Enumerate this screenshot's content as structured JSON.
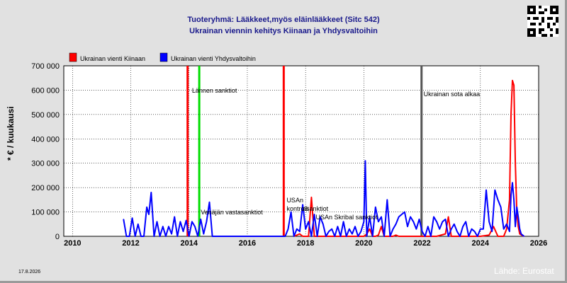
{
  "header": {
    "title_line1": "Tuoteryhmä: Lääkkeet,myös eläinlääkkeet (Sitc 542)",
    "title_line2": "Ukrainan viennin kehitys  Kiinaan ja Yhdysvaltoihin"
  },
  "footer": {
    "date": "17.8.2026",
    "source": "Lähde: Eurostat"
  },
  "colors": {
    "background": "#e1e1e1",
    "plot": "#ffffff",
    "title": "#1a1a8c",
    "china": "#ff0000",
    "usa": "#0000ff",
    "green_marker": "#00dd00",
    "gray_marker": "#555555"
  },
  "chart_data": {
    "type": "line",
    "title": "Tuoteryhmä: Lääkkeet,myös eläinlääkkeet (Sitc 542)",
    "subtitle": "Ukrainan viennin kehitys  Kiinaan ja Yhdysvaltoihin",
    "xlabel": "",
    "ylabel": "* € / kuukausi",
    "xlim": [
      2009.7,
      2026.0
    ],
    "ylim": [
      0,
      700000
    ],
    "grid": true,
    "legend_position": "top-left",
    "x_ticks": [
      2010,
      2012,
      2014,
      2016,
      2018,
      2020,
      2022,
      2024,
      2026
    ],
    "y_ticks": [
      0,
      100000,
      200000,
      300000,
      400000,
      500000,
      600000,
      700000
    ],
    "y_tick_labels": [
      "0",
      "100 000",
      "200 000",
      "300 000",
      "400 000",
      "500 000",
      "600 000",
      "700 000"
    ],
    "series": [
      {
        "name": "Ukrainan vienti Kiinaan",
        "color": "#ff0000",
        "x": [
          2017.6,
          2017.8,
          2017.9,
          2018.0,
          2018.1,
          2018.2,
          2018.3,
          2018.4,
          2018.5,
          2019.0,
          2019.5,
          2020.0,
          2020.1,
          2020.2,
          2020.3,
          2020.4,
          2020.5,
          2020.6,
          2020.7,
          2020.8,
          2020.9,
          2021.0,
          2021.1,
          2021.2,
          2021.3,
          2021.5,
          2022.0,
          2022.5,
          2022.8,
          2022.9,
          2023.0,
          2023.5,
          2024.0,
          2024.3,
          2024.45,
          2024.6,
          2024.8,
          2024.9,
          2025.0,
          2025.05,
          2025.1,
          2025.15,
          2025.2,
          2025.25,
          2025.3,
          2025.35,
          2025.5
        ],
        "y": [
          0,
          10000,
          0,
          0,
          0,
          160000,
          0,
          0,
          0,
          0,
          0,
          0,
          10000,
          30000,
          0,
          0,
          5000,
          40000,
          0,
          0,
          0,
          0,
          5000,
          0,
          0,
          0,
          0,
          0,
          10000,
          80000,
          0,
          0,
          0,
          5000,
          40000,
          0,
          0,
          30000,
          150000,
          500000,
          640000,
          620000,
          300000,
          100000,
          40000,
          10000,
          0
        ]
      },
      {
        "name": "Ukrainan vienti Yhdysvaltoihin",
        "color": "#0000ff",
        "x": [
          2011.75,
          2011.85,
          2011.95,
          2012.05,
          2012.15,
          2012.25,
          2012.35,
          2012.45,
          2012.55,
          2012.62,
          2012.7,
          2012.8,
          2012.9,
          2013.0,
          2013.1,
          2013.2,
          2013.3,
          2013.4,
          2013.5,
          2013.6,
          2013.7,
          2013.8,
          2013.9,
          2014.0,
          2014.1,
          2014.2,
          2014.3,
          2014.4,
          2014.5,
          2014.6,
          2014.7,
          2014.8,
          2017.2,
          2017.3,
          2017.4,
          2017.5,
          2017.6,
          2017.7,
          2017.8,
          2017.9,
          2018.0,
          2018.1,
          2018.2,
          2018.3,
          2018.4,
          2018.5,
          2018.6,
          2018.7,
          2018.8,
          2018.9,
          2019.0,
          2019.1,
          2019.2,
          2019.3,
          2019.4,
          2019.5,
          2019.6,
          2019.7,
          2019.8,
          2019.9,
          2020.0,
          2020.05,
          2020.1,
          2020.2,
          2020.3,
          2020.4,
          2020.5,
          2020.6,
          2020.7,
          2020.8,
          2020.9,
          2021.0,
          2021.1,
          2021.2,
          2021.3,
          2021.4,
          2021.5,
          2021.6,
          2021.7,
          2021.8,
          2021.9,
          2022.0,
          2022.1,
          2022.2,
          2022.3,
          2022.4,
          2022.5,
          2022.6,
          2022.7,
          2022.8,
          2022.9,
          2023.0,
          2023.1,
          2023.2,
          2023.3,
          2023.4,
          2023.5,
          2023.6,
          2023.7,
          2023.8,
          2023.9,
          2024.0,
          2024.1,
          2024.2,
          2024.3,
          2024.4,
          2024.5,
          2024.6,
          2024.7,
          2024.8,
          2024.9,
          2025.0,
          2025.05,
          2025.1,
          2025.15,
          2025.2,
          2025.25,
          2025.3,
          2025.35,
          2025.4,
          2025.5
        ],
        "y": [
          70000,
          0,
          0,
          75000,
          0,
          50000,
          0,
          0,
          120000,
          90000,
          180000,
          0,
          60000,
          0,
          40000,
          0,
          40000,
          10000,
          80000,
          0,
          60000,
          20000,
          65000,
          0,
          60000,
          40000,
          0,
          70000,
          10000,
          60000,
          140000,
          0,
          0,
          0,
          30000,
          100000,
          0,
          30000,
          20000,
          130000,
          30000,
          60000,
          0,
          90000,
          0,
          80000,
          50000,
          0,
          20000,
          30000,
          0,
          40000,
          0,
          60000,
          0,
          30000,
          10000,
          40000,
          0,
          20000,
          60000,
          310000,
          0,
          80000,
          0,
          120000,
          60000,
          80000,
          0,
          150000,
          0,
          30000,
          50000,
          80000,
          90000,
          100000,
          40000,
          80000,
          60000,
          30000,
          70000,
          20000,
          0,
          40000,
          0,
          80000,
          60000,
          30000,
          60000,
          70000,
          0,
          30000,
          50000,
          20000,
          0,
          40000,
          60000,
          0,
          30000,
          20000,
          0,
          30000,
          30000,
          190000,
          60000,
          20000,
          190000,
          150000,
          120000,
          30000,
          50000,
          20000,
          170000,
          220000,
          150000,
          40000,
          120000,
          80000,
          30000,
          10000,
          0
        ]
      }
    ],
    "event_lines": [
      {
        "x": 2013.95,
        "color": "#ff0000",
        "label": ""
      },
      {
        "x": 2014.35,
        "color": "#00dd00",
        "label": ""
      },
      {
        "x": 2017.25,
        "color": "#ff0000",
        "label": ""
      },
      {
        "x": 2021.98,
        "color": "#555555",
        "label": ""
      }
    ],
    "annotations": [
      {
        "text": "Lännen sanktiot",
        "x": 2014.1,
        "y": 590000
      },
      {
        "text": "Venäjän vastasanktiot",
        "x": 2014.4,
        "y": 90000
      },
      {
        "text": "USAn",
        "x": 2017.35,
        "y": 140000
      },
      {
        "text": "kontrolli",
        "x": 2017.35,
        "y": 105000
      },
      {
        "text": "asanktiot",
        "x": 2017.9,
        "y": 105000
      },
      {
        "text": "USAn Skribal sanktiot",
        "x": 2018.35,
        "y": 70000
      },
      {
        "text": "Ukrainan sota alkaa",
        "x": 2022.05,
        "y": 575000
      }
    ]
  }
}
